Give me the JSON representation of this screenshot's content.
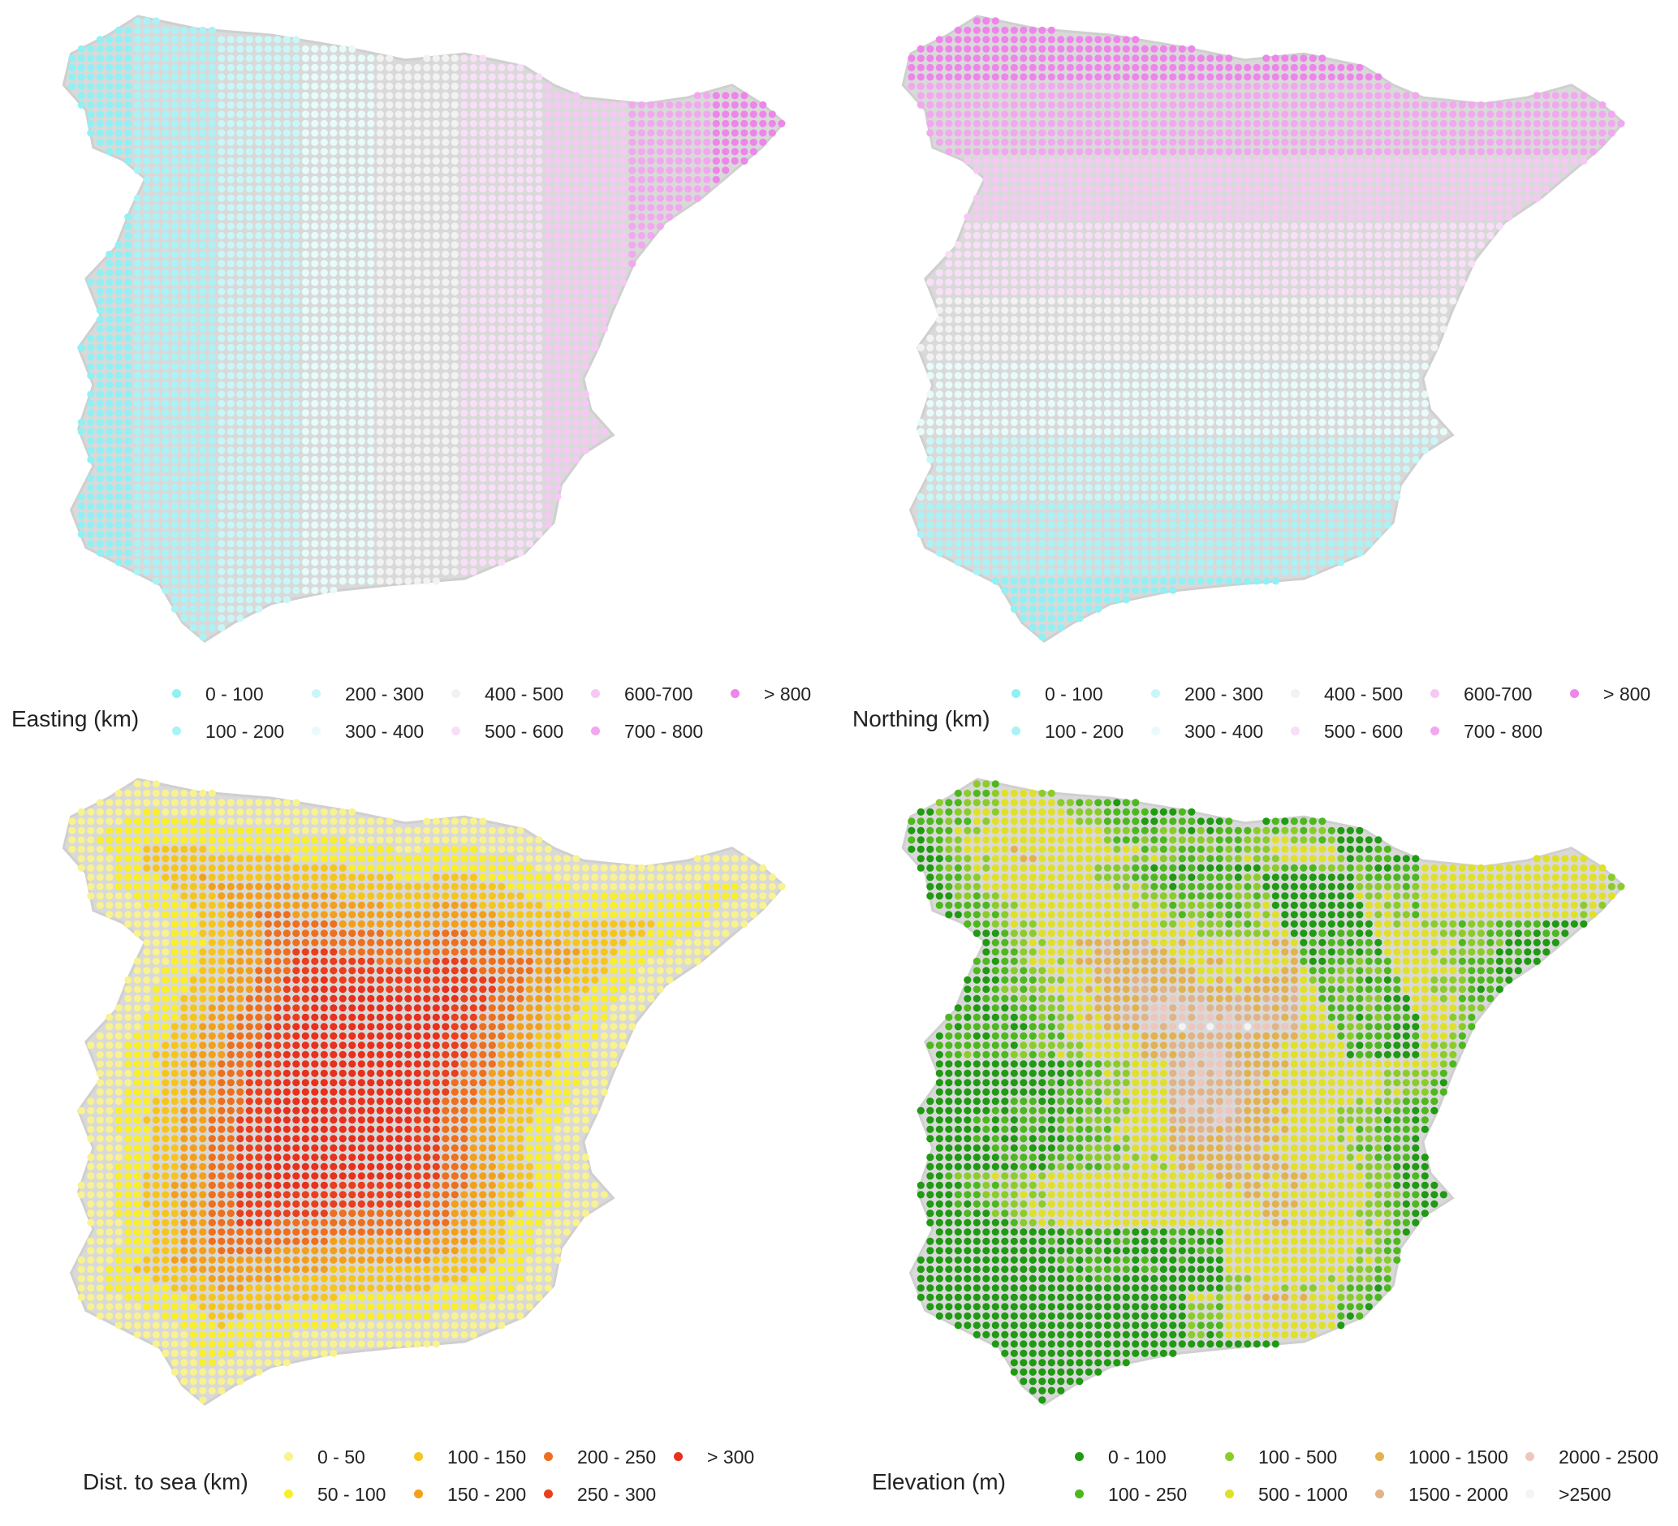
{
  "panels": [
    {
      "id": "easting",
      "legend_title": "Easting (km)",
      "pattern": "vertical",
      "items": [
        {
          "label": "0 - 100",
          "color": "#8ff1f4"
        },
        {
          "label": "100 - 200",
          "color": "#a9f3f6"
        },
        {
          "label": "200 - 300",
          "color": "#c9f7f8"
        },
        {
          "label": "300 - 400",
          "color": "#e8fbfb"
        },
        {
          "label": "400 - 500",
          "color": "#f2f2f2"
        },
        {
          "label": "500 - 600",
          "color": "#f8dff7"
        },
        {
          "label": "600-700",
          "color": "#f6c8f4"
        },
        {
          "label": "700 - 800",
          "color": "#f2a8ef"
        },
        {
          "label": "> 800",
          "color": "#ee85ea"
        }
      ]
    },
    {
      "id": "northing",
      "legend_title": "Northing (km)",
      "pattern": "horizontal",
      "items": [
        {
          "label": "0 - 100",
          "color": "#8ff1f4"
        },
        {
          "label": "100 - 200",
          "color": "#a9f3f6"
        },
        {
          "label": "200 - 300",
          "color": "#c9f7f8"
        },
        {
          "label": "300 - 400",
          "color": "#e8fbfb"
        },
        {
          "label": "400 - 500",
          "color": "#f2f2f2"
        },
        {
          "label": "500 - 600",
          "color": "#f8dff7"
        },
        {
          "label": "600-700",
          "color": "#f6c8f4"
        },
        {
          "label": "700 - 800",
          "color": "#f2a8ef"
        },
        {
          "label": "> 800",
          "color": "#ee85ea"
        }
      ]
    },
    {
      "id": "distsea",
      "legend_title": "Dist. to sea (km)",
      "pattern": "radial",
      "items": [
        {
          "label": "0 - 50",
          "color": "#f8f290"
        },
        {
          "label": "50 - 100",
          "color": "#f8ef2a"
        },
        {
          "label": "100 - 150",
          "color": "#f5c51b"
        },
        {
          "label": "150 - 200",
          "color": "#f2a01c"
        },
        {
          "label": "200 - 250",
          "color": "#ee6f1d"
        },
        {
          "label": "250 - 300",
          "color": "#ea3e1d"
        },
        {
          "label": "> 300",
          "color": "#e8301c"
        }
      ]
    },
    {
      "id": "elevation",
      "legend_title": "Elevation (m)",
      "pattern": "terrain",
      "items": [
        {
          "label": "0 - 100",
          "color": "#1f9a12"
        },
        {
          "label": "100 - 250",
          "color": "#4db81e"
        },
        {
          "label": "100 - 500",
          "color": "#8ccc2a"
        },
        {
          "label": "500 - 1000",
          "color": "#e0e02a"
        },
        {
          "label": "1000 - 1500",
          "color": "#e3b24e"
        },
        {
          "label": "1500 - 2000",
          "color": "#e2b386"
        },
        {
          "label": "2000 - 2500",
          "color": "#edc6bd"
        },
        {
          "label": ">2500",
          "color": "#f4f4f4"
        }
      ]
    }
  ]
}
